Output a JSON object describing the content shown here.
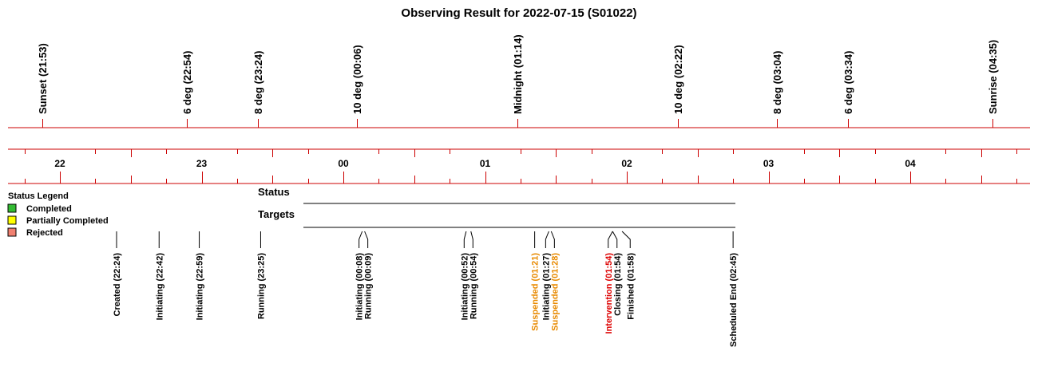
{
  "title": "Observing Result for 2022-07-15 (S01022)",
  "colors": {
    "axis": "#cc0000",
    "text": "#000000",
    "suspended": "#e88a00",
    "intervention": "#dd0000",
    "completed": "#33bb33",
    "partial": "#ffff00",
    "rejected": "#f08070"
  },
  "sun_events": [
    {
      "label": "Sunset (21:53)",
      "time": "21:53"
    },
    {
      "label": "6 deg (22:54)",
      "time": "22:54"
    },
    {
      "label": "8 deg (23:24)",
      "time": "23:24"
    },
    {
      "label": "10 deg (00:06)",
      "time": "00:06"
    },
    {
      "label": "Midnight (01:14)",
      "time": "01:14"
    },
    {
      "label": "10 deg (02:22)",
      "time": "02:22"
    },
    {
      "label": "8 deg (03:04)",
      "time": "03:04"
    },
    {
      "label": "6 deg (03:34)",
      "time": "03:34"
    },
    {
      "label": "Sunrise (04:35)",
      "time": "04:35"
    }
  ],
  "hour_labels": [
    "22",
    "23",
    "00",
    "01",
    "02",
    "03",
    "04"
  ],
  "legend": {
    "title": "Status Legend",
    "items": [
      {
        "label": "Completed",
        "color": "#33bb33"
      },
      {
        "label": "Partially Completed",
        "color": "#ffff00"
      },
      {
        "label": "Rejected",
        "color": "#f08070"
      }
    ]
  },
  "rows": {
    "status_label": "Status",
    "targets_label": "Targets"
  },
  "status_events": [
    {
      "label": "Created (22:24)",
      "time": "22:24",
      "kind": "normal"
    },
    {
      "label": "Initiating (22:42)",
      "time": "22:42",
      "kind": "normal"
    },
    {
      "label": "Initiating (22:59)",
      "time": "22:59",
      "kind": "normal"
    },
    {
      "label": "Running (23:25)",
      "time": "23:25",
      "kind": "normal"
    },
    {
      "label": "Initiating (00:08)",
      "time": "00:08",
      "kind": "normal"
    },
    {
      "label": "Running (00:09)",
      "time": "00:09",
      "kind": "normal"
    },
    {
      "label": "Initiating (00:52)",
      "time": "00:52",
      "kind": "normal"
    },
    {
      "label": "Running (00:54)",
      "time": "00:54",
      "kind": "normal"
    },
    {
      "label": "Suspended (01:21)",
      "time": "01:21",
      "kind": "suspended"
    },
    {
      "label": "Initiating (01:27)",
      "time": "01:27",
      "kind": "normal"
    },
    {
      "label": "Suspended (01:28)",
      "time": "01:28",
      "kind": "suspended"
    },
    {
      "label": "Intervention (01:54)",
      "time": "01:54",
      "kind": "intervention"
    },
    {
      "label": "Closing (01:54)",
      "time": "01:54",
      "kind": "normal"
    },
    {
      "label": "Finished (01:58)",
      "time": "01:58",
      "kind": "normal"
    },
    {
      "label": "Scheduled End (02:45)",
      "time": "02:45",
      "kind": "normal"
    }
  ]
}
